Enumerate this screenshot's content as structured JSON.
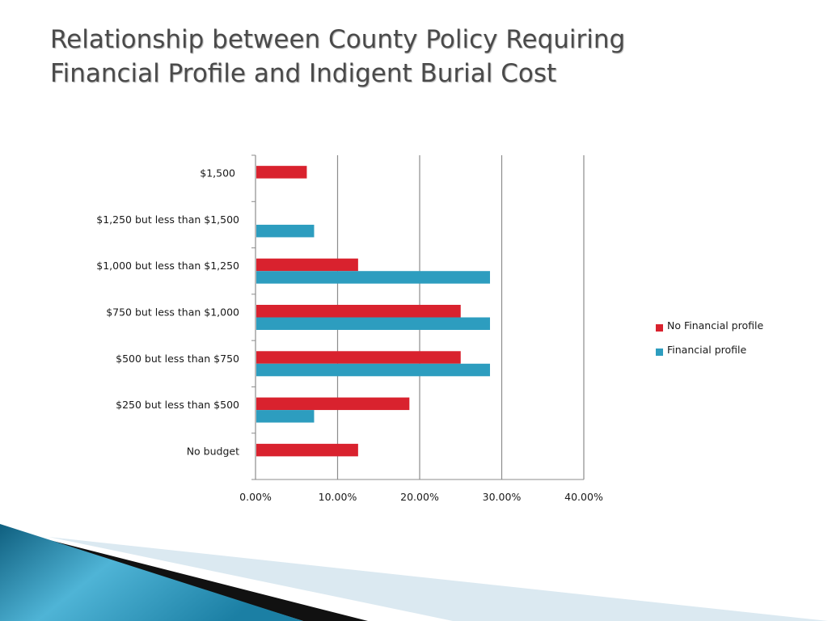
{
  "slide": {
    "title_line1": "Relationship between County Policy Requiring",
    "title_line2": "Financial Profile and Indigent Burial Cost"
  },
  "colors": {
    "no_financial_profile": "#d9222e",
    "financial_profile": "#2d9dbf",
    "gridline": "#8c8c8c",
    "axis": "#8c8c8c"
  },
  "chart_data": {
    "type": "bar",
    "orientation": "horizontal",
    "categories": [
      "$1,500",
      "$1,250 but less than $1,500",
      "$1,000 but less than $1,250",
      "$750 but less than $1,000",
      "$500 but less than $750",
      "$250 but less than $500",
      "No budget"
    ],
    "series": [
      {
        "name": "No Financial profile",
        "values": [
          0.0625,
          0,
          0.125,
          0.25,
          0.25,
          0.1875,
          0.125
        ]
      },
      {
        "name": "Financial profile",
        "values": [
          0,
          0.0714,
          0.2857,
          0.2857,
          0.2857,
          0.0714,
          0
        ]
      }
    ],
    "x_ticks": [
      "0.00%",
      "10.00%",
      "20.00%",
      "30.00%",
      "40.00%"
    ],
    "xlim": [
      0,
      0.4
    ],
    "grid": "vertical",
    "legend": "right"
  }
}
